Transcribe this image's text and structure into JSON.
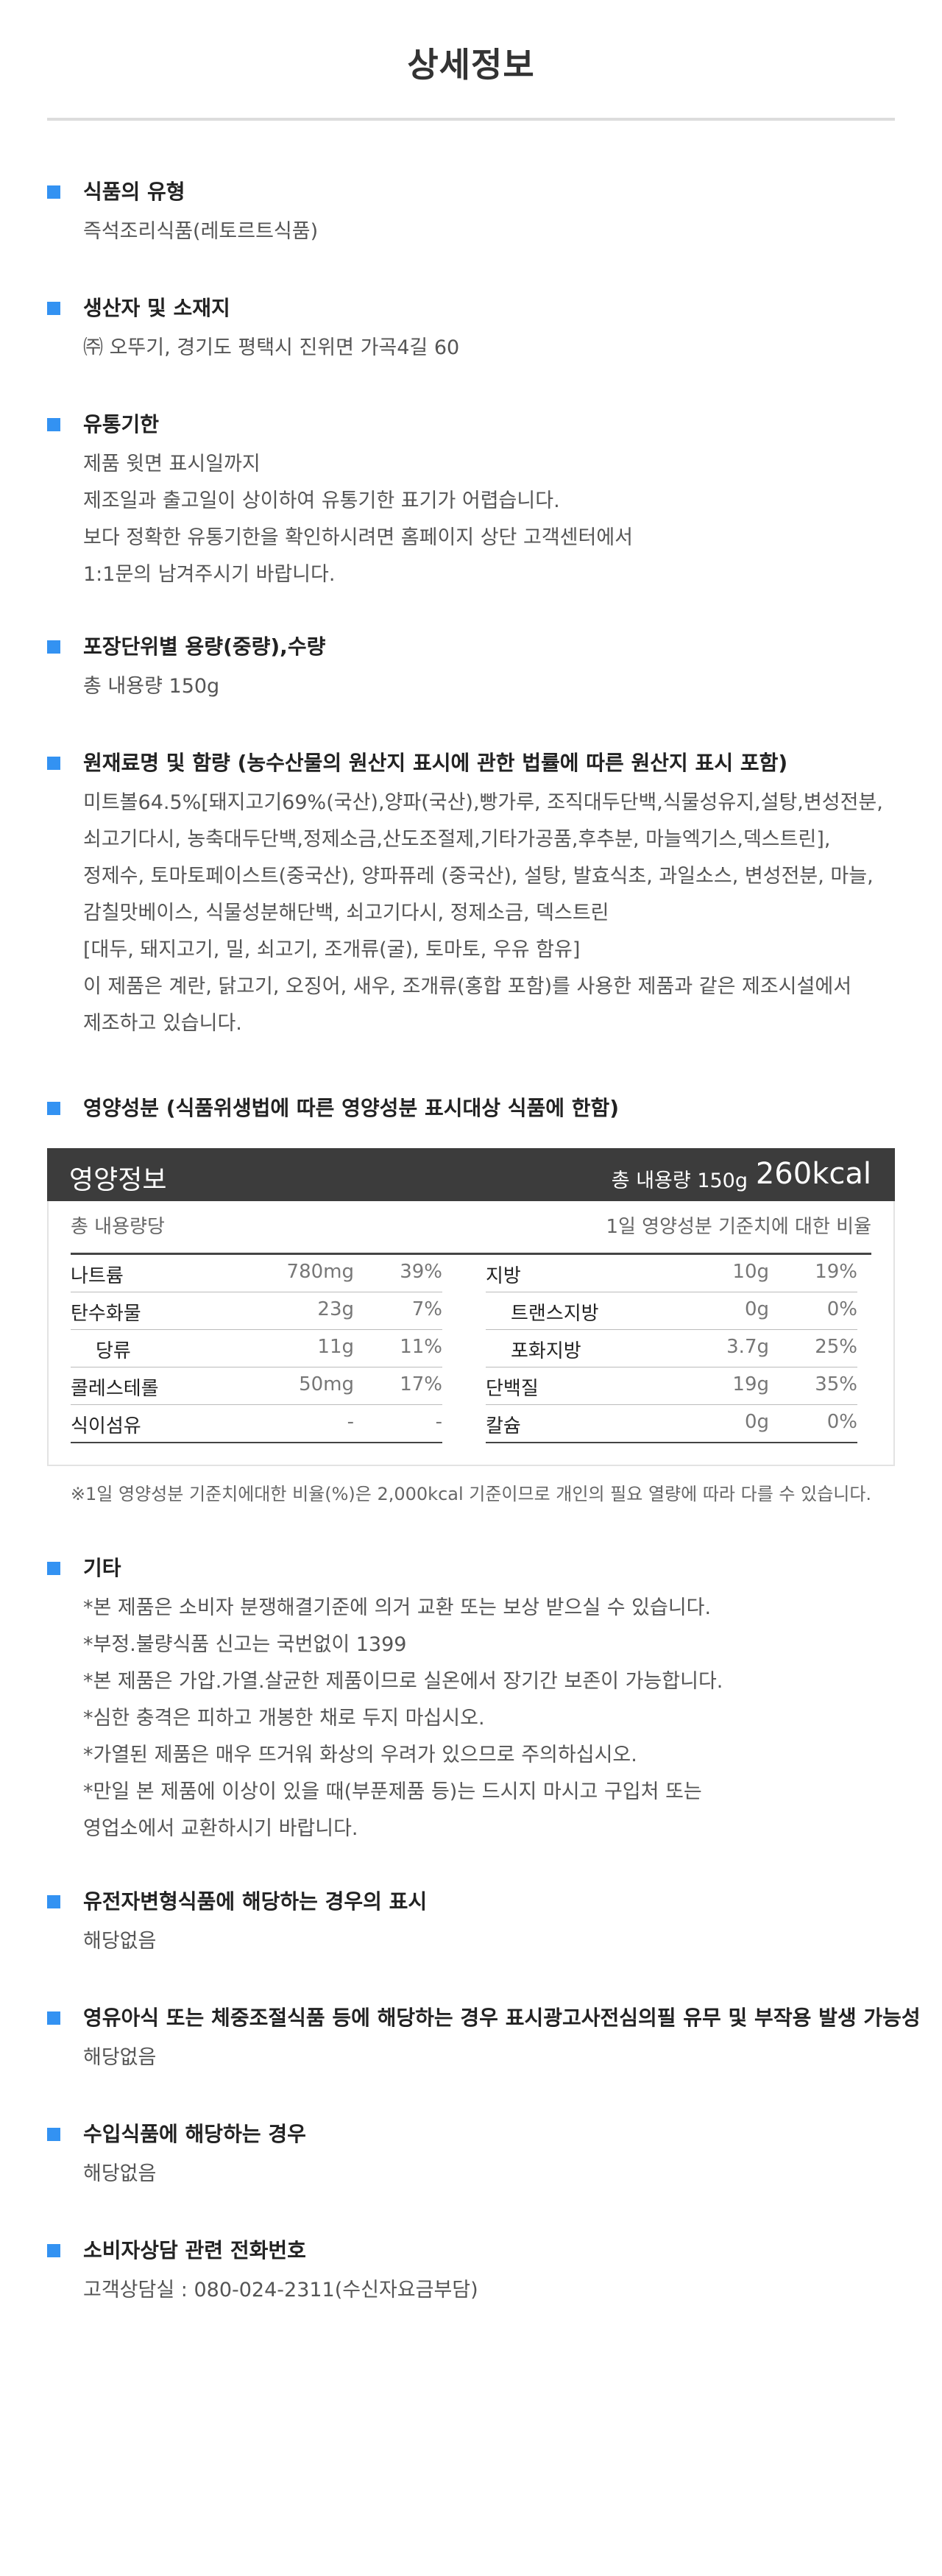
{
  "page_title": "상세정보",
  "sections": [
    {
      "title": "식품의 유형",
      "lines": [
        "즉석조리식품(레토르트식품)"
      ]
    },
    {
      "title": "생산자 및 소재지",
      "lines": [
        "㈜ 오뚜기, 경기도 평택시 진위면 가곡4길 60"
      ]
    },
    {
      "title": "유통기한",
      "lines": [
        "제품 윗면 표시일까지",
        "제조일과 출고일이 상이하여 유통기한 표기가 어렵습니다.",
        "보다 정확한 유통기한을 확인하시려면 홈페이지 상단 고객센터에서",
        "1:1문의 남겨주시기 바랍니다."
      ]
    },
    {
      "title": "포장단위별 용량(중량),수량",
      "lines": [
        "총 내용량 150g"
      ]
    },
    {
      "title": "원재료명 및 함량 (농수산물의 원산지 표시에 관한 법률에 따른 원산지 표시 포함)",
      "lines": [
        "미트볼64.5%[돼지고기69%(국산),양파(국산),빵가루, 조직대두단백,식물성유지,설탕,변성전분,",
        "쇠고기다시, 농축대두단백,정제소금,산도조절제,기타가공품,후추분, 마늘엑기스,덱스트린],",
        "정제수, 토마토페이스트(중국산), 양파퓨레 (중국산), 설탕, 발효식초, 과일소스, 변성전분, 마늘,",
        "감칠맛베이스, 식물성분해단백, 쇠고기다시, 정제소금, 덱스트린",
        "[대두, 돼지고기, 밀, 쇠고기, 조개류(굴), 토마토, 우유 함유]",
        "이 제품은 계란, 닭고기, 오징어, 새우, 조개류(홍합 포함)를 사용한 제품과 같은 제조시설에서",
        "제조하고 있습니다."
      ]
    },
    {
      "title": "영양성분 (식품위생법에 따른 영양성분 표시대상 식품에 한함)",
      "lines": []
    },
    {
      "title": "기타",
      "lines": [
        "*본 제품은 소비자 분쟁해결기준에 의거 교환 또는 보상 받으실 수 있습니다.",
        "*부정.불량식품 신고는 국번없이 1399",
        "*본 제품은 가압.가열.살균한 제품이므로 실온에서 장기간 보존이 가능합니다.",
        "*심한 충격은 피하고 개봉한 채로 두지 마십시오.",
        "*가열된 제품은 매우 뜨거워 화상의 우려가 있으므로 주의하십시오.",
        "*만일 본 제품에 이상이 있을 때(부푼제품 등)는 드시지 마시고 구입처 또는",
        "  영업소에서 교환하시기 바랍니다."
      ]
    },
    {
      "title": "유전자변형식품에 해당하는 경우의 표시",
      "lines": [
        "해당없음"
      ]
    },
    {
      "title": "영유아식 또는 체중조절식품 등에 해당하는 경우 표시광고사전심의필 유무 및 부작용 발생 가능성",
      "lines": [
        "해당없음"
      ]
    },
    {
      "title": "수입식품에 해당하는 경우",
      "lines": [
        "해당없음"
      ]
    },
    {
      "title": "소비자상담 관련 전화번호",
      "lines": [
        "고객상담실 : 080-024-2311(수신자요금부담)"
      ]
    }
  ],
  "nutrition": {
    "label": "영양정보",
    "total": "총 내용량 150g",
    "kcal": "260kcal",
    "per_label": "총 내용량당",
    "daily_label": "1일 영양성분 기준치에 대한 비율",
    "left": [
      {
        "name": "나트륨",
        "amount": "780mg",
        "pct": "39%",
        "indent": false
      },
      {
        "name": "탄수화물",
        "amount": "23g",
        "pct": "7%",
        "indent": false
      },
      {
        "name": "당류",
        "amount": "11g",
        "pct": "11%",
        "indent": true
      },
      {
        "name": "콜레스테롤",
        "amount": "50mg",
        "pct": "17%",
        "indent": false
      },
      {
        "name": "식이섬유",
        "amount": "-",
        "pct": "-",
        "indent": false
      }
    ],
    "right": [
      {
        "name": "지방",
        "amount": "10g",
        "pct": "19%",
        "indent": false
      },
      {
        "name": "트랜스지방",
        "amount": "0g",
        "pct": "0%",
        "indent": true
      },
      {
        "name": "포화지방",
        "amount": "3.7g",
        "pct": "25%",
        "indent": true
      },
      {
        "name": "단백질",
        "amount": "19g",
        "pct": "35%",
        "indent": false
      },
      {
        "name": "칼슘",
        "amount": "0g",
        "pct": "0%",
        "indent": false
      }
    ],
    "footnote": "※1일 영양성분 기준치에대한 비율(%)은 2,000kcal 기준이므로 개인의 필요 열량에 따라 다를 수 있습니다."
  },
  "colors": {
    "bullet": "#3392f2",
    "header_bg": "#3c3c3c"
  }
}
